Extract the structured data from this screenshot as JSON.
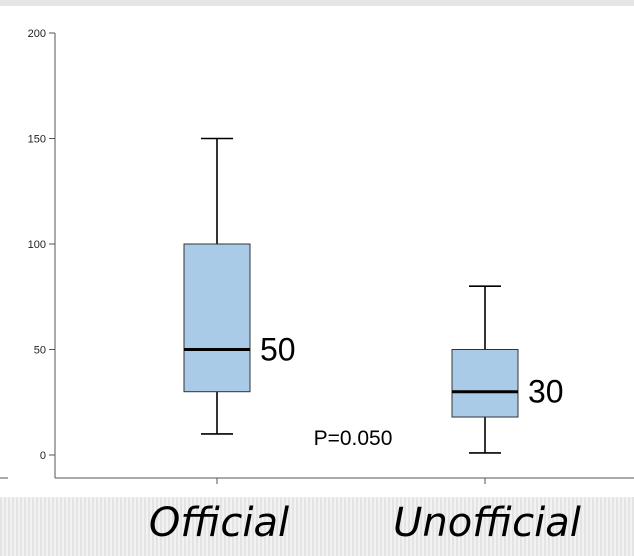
{
  "chart_data": {
    "type": "box",
    "categories": [
      "Official",
      "Unofficial"
    ],
    "boxes": [
      {
        "category": "Official",
        "min": 10,
        "q1": 30,
        "median": 50,
        "q3": 100,
        "max": 150,
        "median_label": "50"
      },
      {
        "category": "Unofficial",
        "min": 1,
        "q1": 18,
        "median": 30,
        "q3": 50,
        "max": 80,
        "median_label": "30"
      }
    ],
    "y_ticks": [
      "0",
      "50",
      "100",
      "150",
      "200"
    ],
    "ylim": [
      0,
      200
    ],
    "annotation": "P=0.050",
    "grid": false,
    "colors": {
      "box_fill": "#a9cbe8",
      "box_stroke": "#333333",
      "median": "#000000",
      "axis": "#555555"
    }
  }
}
